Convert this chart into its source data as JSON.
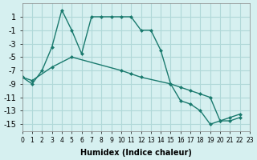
{
  "xlabel": "Humidex (Indice chaleur)",
  "bg_color": "#d6f0f0",
  "line_color": "#1a7a6e",
  "grid_color": "#b0d8d8",
  "ylim": [
    -16,
    3
  ],
  "xlim": [
    0,
    23
  ],
  "yticks": [
    1,
    -1,
    -3,
    -5,
    -7,
    -9,
    -11,
    -13,
    -15
  ],
  "line1_x": [
    0,
    1,
    2,
    3,
    4,
    5,
    6,
    7,
    8,
    9,
    10,
    11,
    12,
    13,
    14,
    15,
    16,
    17,
    18,
    19,
    20,
    21,
    22
  ],
  "line1_y": [
    -8,
    -9,
    -7,
    -3.5,
    2,
    -1,
    -4.5,
    1,
    1,
    1,
    1,
    1,
    -1,
    -1,
    -4,
    -9,
    -11.5,
    -12,
    -13,
    -15,
    -14.5,
    -14,
    -13.5
  ],
  "line2_x": [
    0,
    1,
    3,
    5,
    10,
    11,
    12,
    15,
    16,
    17,
    18,
    19,
    20,
    21,
    22
  ],
  "line2_y": [
    -8,
    -8.5,
    -6.5,
    -5,
    -7,
    -7.5,
    -8,
    -9,
    -9.5,
    -10,
    -10.5,
    -11,
    -14.5,
    -14.5,
    -14
  ]
}
